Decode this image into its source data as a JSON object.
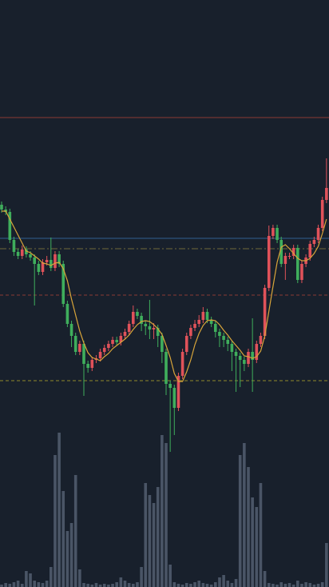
{
  "chart_data": {
    "type": "candlestick",
    "ylim": [
      0,
      734
    ],
    "volume_lim": [
      0,
      200
    ],
    "colors": {
      "up": "#e0525a",
      "down": "#3fae5c",
      "ma": "#d9a53a",
      "volume": "#4a5566",
      "background": "#18202c"
    },
    "levels": [
      {
        "value": 587,
        "color": "#8a3a34",
        "style": "solid"
      },
      {
        "value": 436,
        "color": "#2f5f8f",
        "style": "solid"
      },
      {
        "value": 423,
        "color": "#6f6a3a",
        "style": "dashdot"
      },
      {
        "value": 365,
        "color": "#8a3a34",
        "style": "dashed"
      },
      {
        "value": 258,
        "color": "#8f8a2a",
        "style": "dashed"
      }
    ],
    "open": [
      478,
      472,
      469,
      434,
      419,
      414,
      422,
      416,
      412,
      404,
      394,
      406,
      409,
      399,
      416,
      404,
      354,
      329,
      314,
      294,
      304,
      279,
      274,
      284,
      286,
      294,
      299,
      304,
      309,
      306,
      314,
      319,
      329,
      344,
      339,
      329,
      326,
      322,
      324,
      314,
      294,
      254,
      249,
      224,
      264,
      294,
      314,
      324,
      329,
      334,
      344,
      334,
      329,
      319,
      314,
      309,
      304,
      294,
      289,
      284,
      279,
      294,
      284,
      304,
      314,
      374,
      439,
      449,
      434,
      404,
      414,
      414,
      424,
      384,
      404,
      412,
      429,
      434,
      449,
      484
    ],
    "high": [
      482,
      476,
      473,
      438,
      423,
      427,
      426,
      420,
      416,
      408,
      410,
      414,
      437,
      420,
      420,
      408,
      358,
      333,
      318,
      308,
      308,
      283,
      288,
      290,
      298,
      303,
      308,
      313,
      313,
      318,
      323,
      333,
      352,
      348,
      343,
      333,
      359,
      330,
      328,
      318,
      298,
      258,
      253,
      268,
      298,
      318,
      328,
      334,
      340,
      350,
      348,
      338,
      333,
      323,
      318,
      313,
      308,
      298,
      293,
      288,
      298,
      336,
      308,
      318,
      378,
      452,
      453,
      453,
      438,
      418,
      418,
      428,
      428,
      408,
      416,
      433,
      438,
      453,
      488,
      536
    ],
    "low": [
      468,
      465,
      430,
      414,
      410,
      410,
      412,
      408,
      352,
      390,
      390,
      402,
      395,
      395,
      400,
      350,
      325,
      300,
      290,
      290,
      239,
      268,
      270,
      280,
      282,
      290,
      295,
      300,
      302,
      302,
      310,
      315,
      325,
      335,
      320,
      315,
      310,
      310,
      300,
      280,
      240,
      169,
      190,
      220,
      260,
      290,
      310,
      320,
      325,
      330,
      330,
      325,
      312,
      300,
      300,
      295,
      270,
      244,
      250,
      270,
      275,
      244,
      280,
      300,
      310,
      370,
      435,
      430,
      400,
      384,
      410,
      410,
      380,
      380,
      400,
      408,
      425,
      430,
      445,
      480
    ],
    "close": [
      472,
      469,
      434,
      419,
      414,
      422,
      416,
      412,
      404,
      394,
      406,
      409,
      399,
      416,
      404,
      354,
      329,
      314,
      294,
      304,
      279,
      274,
      284,
      286,
      294,
      299,
      304,
      309,
      306,
      314,
      319,
      329,
      344,
      339,
      329,
      326,
      322,
      324,
      314,
      294,
      254,
      249,
      224,
      264,
      294,
      314,
      324,
      329,
      334,
      344,
      334,
      329,
      319,
      314,
      309,
      304,
      294,
      289,
      284,
      279,
      294,
      284,
      304,
      314,
      374,
      439,
      449,
      434,
      404,
      414,
      414,
      424,
      384,
      404,
      412,
      429,
      434,
      449,
      484,
      499
    ],
    "ma": [
      470,
      470,
      460,
      450,
      440,
      430,
      420,
      418,
      414,
      410,
      405,
      404,
      402,
      405,
      406,
      398,
      383,
      360,
      340,
      320,
      305,
      293,
      287,
      285,
      283,
      288,
      292,
      298,
      302,
      306,
      310,
      315,
      322,
      328,
      332,
      333,
      332,
      328,
      323,
      316,
      302,
      287,
      267,
      257,
      257,
      269,
      284,
      303,
      317,
      327,
      333,
      334,
      333,
      328,
      321,
      315,
      308,
      302,
      296,
      289,
      288,
      286,
      288,
      295,
      314,
      345,
      376,
      406,
      425,
      428,
      423,
      417,
      411,
      408,
      408,
      411,
      417,
      426,
      442,
      460
    ],
    "volume": [
      3,
      5,
      4,
      6,
      8,
      4,
      20,
      17,
      8,
      6,
      5,
      8,
      25,
      165,
      193,
      120,
      70,
      80,
      140,
      22,
      5,
      4,
      3,
      5,
      3,
      4,
      3,
      4,
      6,
      12,
      8,
      5,
      4,
      6,
      25,
      130,
      115,
      105,
      125,
      190,
      180,
      28,
      6,
      4,
      3,
      5,
      4,
      6,
      8,
      5,
      4,
      3,
      6,
      12,
      15,
      8,
      5,
      10,
      165,
      180,
      150,
      112,
      100,
      130,
      20,
      5,
      4,
      3,
      6,
      4,
      5,
      3,
      8,
      4,
      6,
      5,
      3,
      4,
      6,
      55
    ]
  }
}
